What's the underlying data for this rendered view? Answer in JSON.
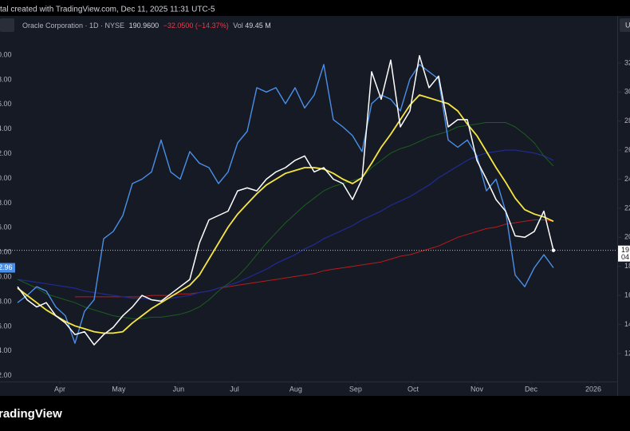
{
  "chart_data": {
    "type": "line",
    "attribution": "tal created with TradingView.com, Dec 11, 2025 11:31 UTC-5",
    "title": "Oracle Corporation · 1D · NYSE",
    "last": "190.9600",
    "change": "−32.0500 (−14.37%)",
    "volume_label": "Vol",
    "volume": "49.45 M",
    "corner_tag": "U",
    "logo": "radingView",
    "left_axis_labels": [
      "0.00",
      "8.00",
      "6.00",
      "4.00",
      "2.00",
      "0.00",
      "8.00",
      "6.00",
      "0.00",
      "0.00",
      "8.00",
      "6.00",
      "4.00",
      "2.00"
    ],
    "compare_tag": "2.96",
    "price_tag": [
      "19",
      "04"
    ],
    "xlim": [
      -1.83,
      62.5
    ],
    "xticks": [
      {
        "value": 4.42,
        "label": "Apr"
      },
      {
        "value": 10.58,
        "label": "May"
      },
      {
        "value": 16.83,
        "label": "Jun"
      },
      {
        "value": 22.67,
        "label": "Jul"
      },
      {
        "value": 29.08,
        "label": "Aug"
      },
      {
        "value": 35.33,
        "label": "Sep"
      },
      {
        "value": 41.33,
        "label": "Oct"
      },
      {
        "value": 48,
        "label": "Nov"
      },
      {
        "value": 53.67,
        "label": "Dec"
      },
      {
        "value": 60.17,
        "label": "2026"
      }
    ],
    "ylim": [
      10.07,
      33.92
    ],
    "yticks": [
      12,
      14,
      16,
      18,
      20,
      22,
      24,
      26,
      28,
      30,
      32
    ],
    "series": [
      {
        "color": "#b71c1c",
        "width": 1,
        "values": [
          null,
          null,
          null,
          null,
          null,
          null,
          15.9,
          15.9,
          15.9,
          15.9,
          15.9,
          15.9,
          15.9,
          15.9,
          16.0,
          16.0,
          16.0,
          16.1,
          16.1,
          16.2,
          16.3,
          16.5,
          16.6,
          16.7,
          16.8,
          16.9,
          17.0,
          17.1,
          17.2,
          17.3,
          17.4,
          17.5,
          17.7,
          17.8,
          17.9,
          18.0,
          18.1,
          18.2,
          18.3,
          18.5,
          18.7,
          18.8,
          19.0,
          19.2,
          19.4,
          19.7,
          20.0,
          20.2,
          20.4,
          20.6,
          20.7,
          20.9,
          21.0,
          21.1,
          21.2,
          21.2,
          21.1
        ]
      },
      {
        "color": "#1e2a8a",
        "width": 1.3,
        "values": [
          17.1,
          17.0,
          16.9,
          16.8,
          16.7,
          16.6,
          16.5,
          16.3,
          16.2,
          16.1,
          16.0,
          15.9,
          15.8,
          15.8,
          15.7,
          15.7,
          15.8,
          15.9,
          16.0,
          16.2,
          16.3,
          16.5,
          16.7,
          16.9,
          17.2,
          17.5,
          17.8,
          18.2,
          18.5,
          18.8,
          19.2,
          19.5,
          19.9,
          20.2,
          20.5,
          20.8,
          21.2,
          21.5,
          21.8,
          22.2,
          22.5,
          22.8,
          23.2,
          23.6,
          24.1,
          24.5,
          24.9,
          25.3,
          25.6,
          25.8,
          25.9,
          26.0,
          26.0,
          25.9,
          25.8,
          25.6,
          25.3
        ]
      },
      {
        "color": "#1b5e20",
        "width": 1,
        "values": [
          17.1,
          16.8,
          16.5,
          16.1,
          15.9,
          15.7,
          15.5,
          15.2,
          15.0,
          14.8,
          14.6,
          14.5,
          14.4,
          14.4,
          14.5,
          14.5,
          14.6,
          14.7,
          14.9,
          15.2,
          15.7,
          16.3,
          16.8,
          17.3,
          18.0,
          18.8,
          19.6,
          20.3,
          21.0,
          21.6,
          22.2,
          22.7,
          23.2,
          23.5,
          23.7,
          23.9,
          24.1,
          24.8,
          25.3,
          25.8,
          26.1,
          26.3,
          26.6,
          26.9,
          27.1,
          27.3,
          27.6,
          27.7,
          27.8,
          27.9,
          27.9,
          27.9,
          27.6,
          27.1,
          26.5,
          25.6,
          24.9
        ]
      },
      {
        "color": "#4a8fe7",
        "width": 1.4,
        "values": [
          15.5,
          16.0,
          16.6,
          16.3,
          15.2,
          14.6,
          12.7,
          14.9,
          15.7,
          19.9,
          20.4,
          21.5,
          23.7,
          24.0,
          24.5,
          26.7,
          24.5,
          24.0,
          25.9,
          25.1,
          24.8,
          23.7,
          24.5,
          26.5,
          27.3,
          30.3,
          30.0,
          30.3,
          29.2,
          30.3,
          28.9,
          29.8,
          31.9,
          28.1,
          27.6,
          27.0,
          25.9,
          29.2,
          29.8,
          29.5,
          28.7,
          30.9,
          31.9,
          31.4,
          30.9,
          26.7,
          26.2,
          26.7,
          25.6,
          23.2,
          24.0,
          21.8,
          17.4,
          16.6,
          17.9,
          18.8,
          17.9
        ]
      },
      {
        "color": "#f5e642",
        "width": 1.8,
        "values": [
          16.5,
          16.0,
          15.5,
          15.0,
          14.6,
          14.2,
          13.9,
          13.7,
          13.5,
          13.4,
          13.4,
          13.5,
          14.1,
          14.6,
          15.1,
          15.5,
          15.9,
          16.3,
          16.7,
          17.4,
          18.5,
          19.6,
          20.7,
          21.6,
          22.3,
          23.0,
          23.6,
          24.0,
          24.4,
          24.6,
          24.8,
          24.8,
          24.7,
          24.4,
          24.0,
          23.7,
          24.1,
          25.1,
          26.2,
          27.1,
          28.1,
          29.1,
          29.8,
          29.6,
          29.4,
          29.2,
          28.7,
          27.8,
          27.0,
          25.9,
          24.8,
          23.8,
          22.7,
          21.9,
          21.6,
          21.4,
          21.1
        ]
      },
      {
        "color": "#ffffff",
        "width": 1.5,
        "values": [
          16.6,
          15.7,
          15.2,
          15.5,
          14.6,
          14.1,
          13.3,
          13.5,
          12.6,
          13.3,
          13.8,
          14.6,
          15.2,
          16.0,
          15.7,
          15.6,
          16.1,
          16.6,
          17.1,
          19.6,
          21.2,
          21.5,
          21.8,
          23.2,
          23.4,
          23.2,
          24.0,
          24.5,
          24.8,
          25.3,
          25.6,
          24.5,
          24.8,
          24.0,
          23.7,
          22.6,
          24.0,
          31.4,
          29.5,
          32.2,
          27.6,
          28.7,
          32.5,
          30.3,
          31.1,
          27.6,
          28.1,
          28.1,
          25.3,
          24.0,
          22.6,
          21.8,
          20.1,
          20.0,
          20.4,
          21.8,
          19.1
        ]
      }
    ]
  }
}
